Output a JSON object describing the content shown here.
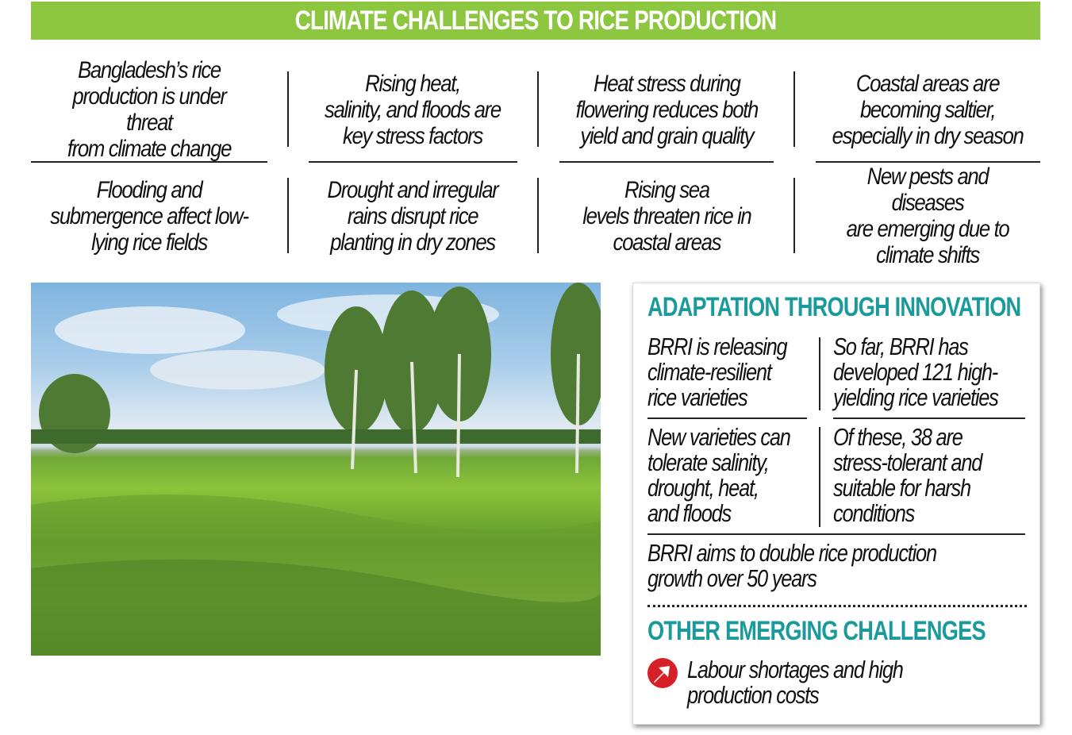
{
  "title": "CLIMATE CHALLENGES TO RICE PRODUCTION",
  "challenges": [
    "Bangladesh’s rice\nproduction is under threat\nfrom climate change",
    "Rising heat,\nsalinity, and floods are\nkey stress factors",
    "Heat stress during\nflowering reduces both\nyield and grain quality",
    "Coastal areas are\nbecoming saltier,\nespecially in dry season",
    "Flooding and\nsubmergence affect low-\nlying rice fields",
    "Drought and irregular\nrains disrupt rice\nplanting in dry zones",
    "Rising sea\nlevels threaten rice in\ncoastal areas",
    "New pests and diseases\nare emerging due to\nclimate shifts"
  ],
  "adaptation": {
    "heading": "ADAPTATION THROUGH INNOVATION",
    "items": [
      "BRRI is releasing\nclimate-resilient\nrice varieties",
      "So far, BRRI has\ndeveloped 121 high-\nyielding rice varieties",
      "New varieties can\ntolerate salinity,\ndrought, heat,\nand floods",
      "Of these, 38 are\nstress-tolerant and\nsuitable for harsh\nconditions"
    ],
    "summary": "BRRI aims to double rice production\ngrowth over 50 years"
  },
  "other": {
    "heading": "OTHER EMERGING CHALLENGES",
    "icon": "arrow-up-right-circle-icon",
    "items": [
      "Labour shortages and high\nproduction costs"
    ]
  },
  "colors": {
    "banner": "#8dc63f",
    "teal": "#1a9a9b",
    "icon": "#d62027"
  }
}
